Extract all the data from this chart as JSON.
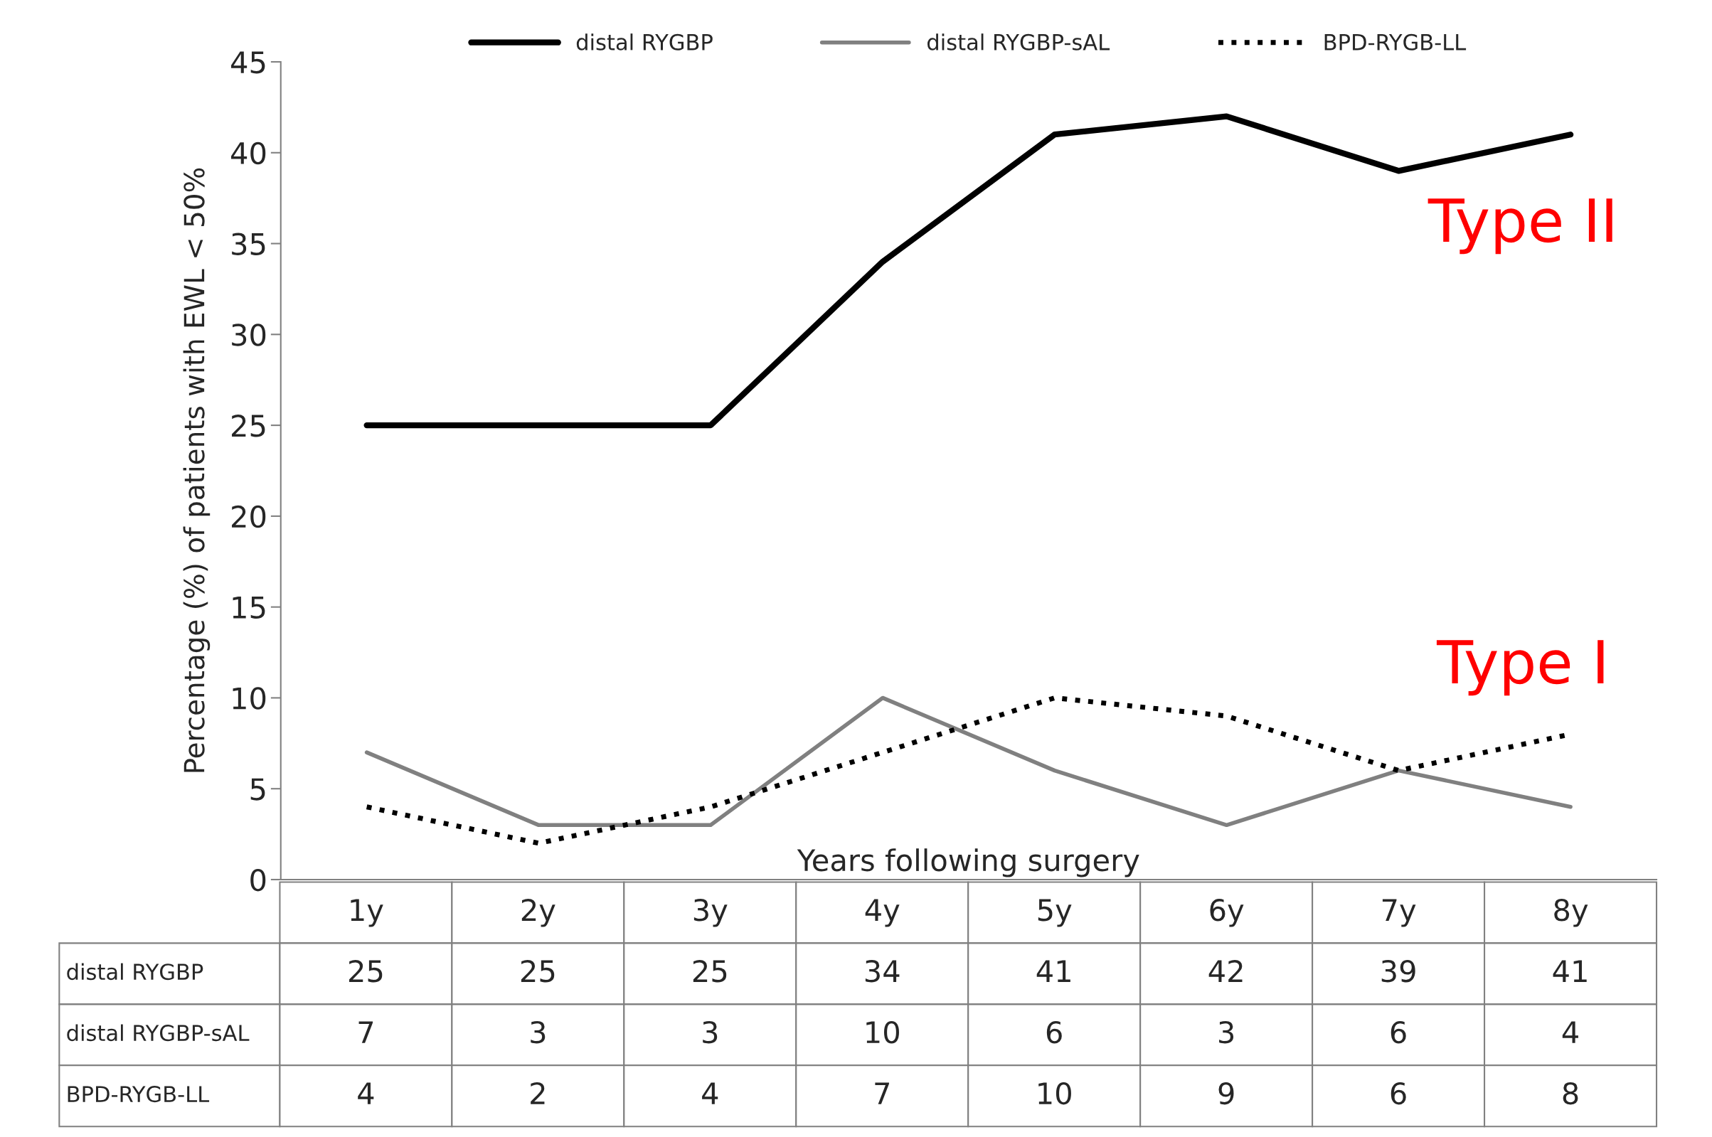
{
  "chart_data": {
    "type": "line",
    "categories": [
      "1y",
      "2y",
      "3y",
      "4y",
      "5y",
      "6y",
      "7y",
      "8y"
    ],
    "series": [
      {
        "name": "distal RYGBP",
        "color": "#000000",
        "line_style": "solid",
        "values": [
          25,
          25,
          25,
          34,
          41,
          42,
          39,
          41
        ]
      },
      {
        "name": "distal RYGBP-sAL",
        "color": "#808080",
        "line_style": "solid",
        "values": [
          7,
          3,
          3,
          10,
          6,
          3,
          6,
          4
        ]
      },
      {
        "name": "BPD-RYGB-LL",
        "color": "#000000",
        "line_style": "dotted",
        "values": [
          4,
          2,
          4,
          7,
          10,
          9,
          6,
          8
        ]
      }
    ],
    "xlabel": "Years following surgery",
    "ylabel": "Percentage (%) of patients with EWL < 50%",
    "ylim": [
      0,
      45
    ],
    "yticks": [
      0,
      5,
      10,
      15,
      20,
      25,
      30,
      35,
      40,
      45
    ],
    "annotations": [
      "Type II",
      "Type I"
    ],
    "data_labels": true,
    "grid": false,
    "legend": "top",
    "marker": "none"
  }
}
